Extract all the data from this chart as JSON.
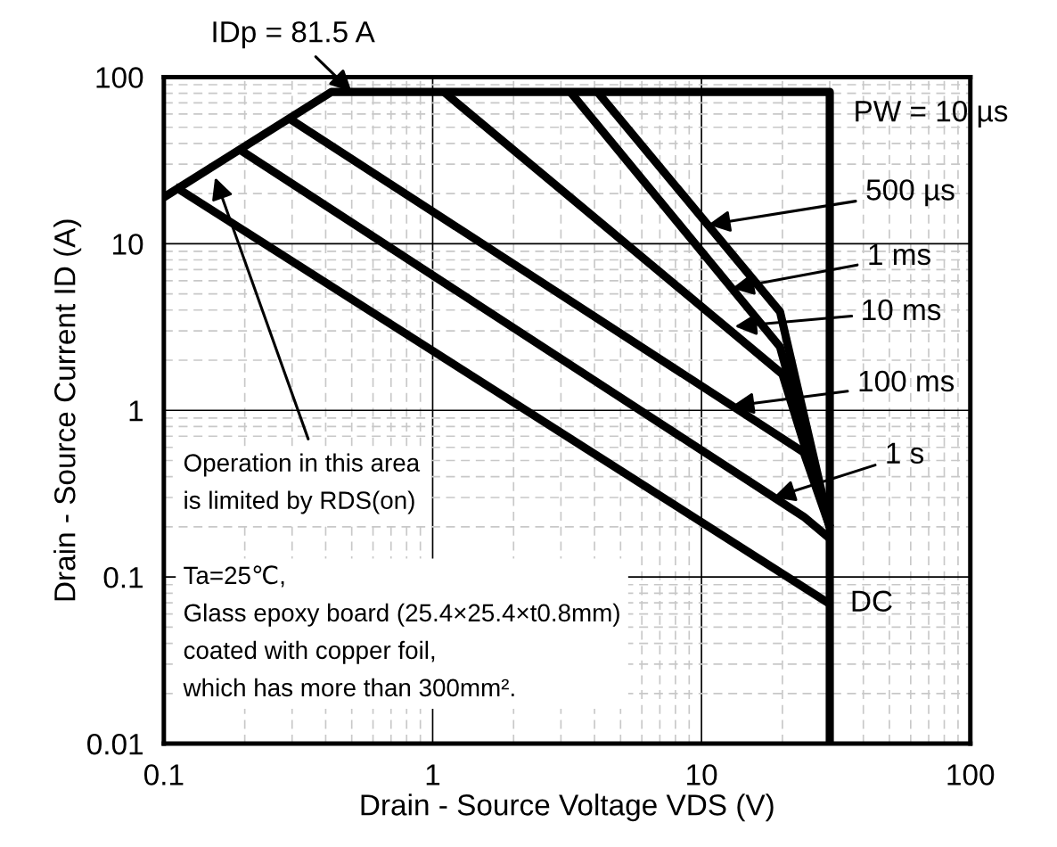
{
  "chart_data": {
    "type": "line",
    "xlabel": "Drain - Source Voltage VDS (V)",
    "ylabel": "Drain - Source Current ID (A)",
    "series": [
      {
        "color": "#000000",
        "x": [
          0.1,
          0.42,
          30,
          30
        ],
        "values": [
          19,
          81.5,
          81.5,
          0.01
        ]
      },
      {
        "color": "#000000",
        "x": [
          4.1,
          19.6,
          30
        ],
        "values": [
          81.5,
          3.9,
          0.2
        ]
      },
      {
        "color": "#000000",
        "x": [
          3.25,
          19.6,
          30
        ],
        "values": [
          81.5,
          2.4,
          0.2
        ]
      },
      {
        "color": "#000000",
        "x": [
          1.1,
          20,
          30
        ],
        "values": [
          81.5,
          1.65,
          0.2
        ]
      },
      {
        "color": "#000000",
        "x": [
          0.29,
          24,
          30
        ],
        "values": [
          57,
          0.56,
          0.2
        ]
      },
      {
        "color": "#000000",
        "x": [
          0.19,
          24,
          30
        ],
        "values": [
          37,
          0.23,
          0.17
        ]
      },
      {
        "color": "#000000",
        "x": [
          0.11,
          30
        ],
        "values": [
          22,
          0.069
        ]
      }
    ],
    "annotations": [
      {
        "text": "IDp = 81.5 A",
        "x": 0.5,
        "y": 81.5
      },
      "PW = 10 µs",
      {
        "text": "500 µs",
        "x": 10.6,
        "y": 13
      },
      {
        "text": "1 ms",
        "x": 13,
        "y": 5.4
      },
      "10 ms",
      {
        "text": "100 ms",
        "x": 13,
        "y": 1.06
      },
      {
        "text": "1 s",
        "x": 18.5,
        "y": 0.3
      },
      "DC",
      {
        "text": "Operation in this area\nis limited by RDS(on)",
        "x": 0.155,
        "y": 25
      },
      "Ta=25℃,\nGlass epoxy board (25.4×25.4×t0.8mm)\ncoated with copper foil,\nwhich has more than 300mm²."
    ],
    "xlim": [
      0.1,
      100
    ],
    "ylim": [
      0.01,
      100
    ],
    "xticks": [
      0.1,
      1,
      10,
      100
    ],
    "yticks": [
      0.01,
      0.1,
      1,
      10,
      100
    ],
    "log": "xy",
    "grid": true,
    "line_style": "solid"
  }
}
